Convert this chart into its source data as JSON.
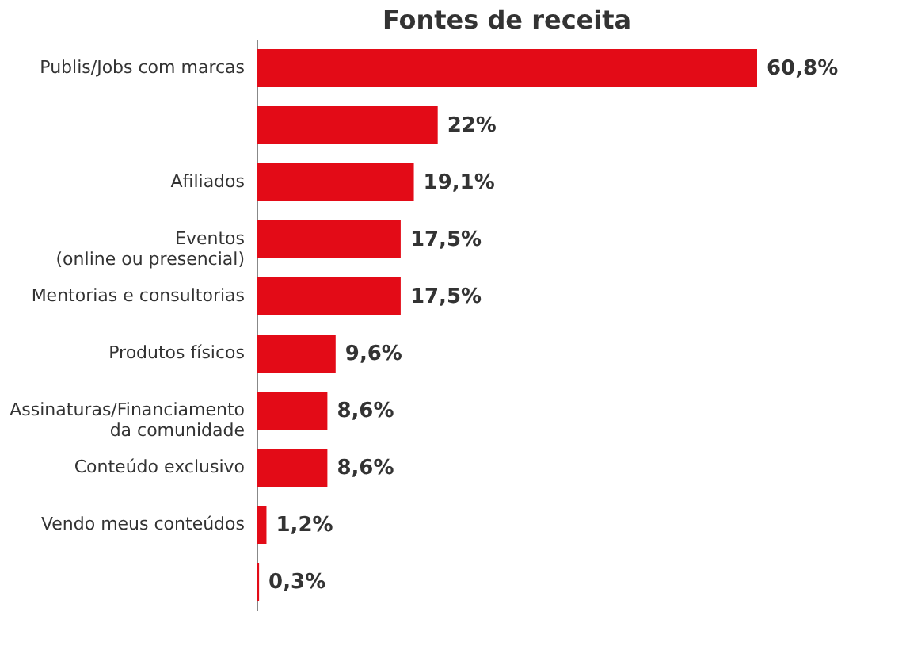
{
  "chart_data": {
    "type": "bar",
    "orientation": "horizontal",
    "title": "Fontes de receita",
    "categories": [
      "Publis/Jobs com marcas",
      null,
      "Afiliados",
      "Eventos\n(online ou presencial)",
      "Mentorias e consultorias",
      "Produtos físicos",
      "Assinaturas/Financiamento\nda comunidade",
      "Conteúdo exclusivo",
      "Vendo meus conteúdos",
      null
    ],
    "values": [
      60.8,
      22,
      19.1,
      17.5,
      17.5,
      9.6,
      8.6,
      8.6,
      1.2,
      0.3
    ],
    "value_labels": [
      "60,8%",
      "22%",
      "19,1%",
      "17,5%",
      "17,5%",
      "9,6%",
      "8,6%",
      "8,6%",
      "1,2%",
      "0,3%"
    ],
    "color": "#e30b17"
  }
}
